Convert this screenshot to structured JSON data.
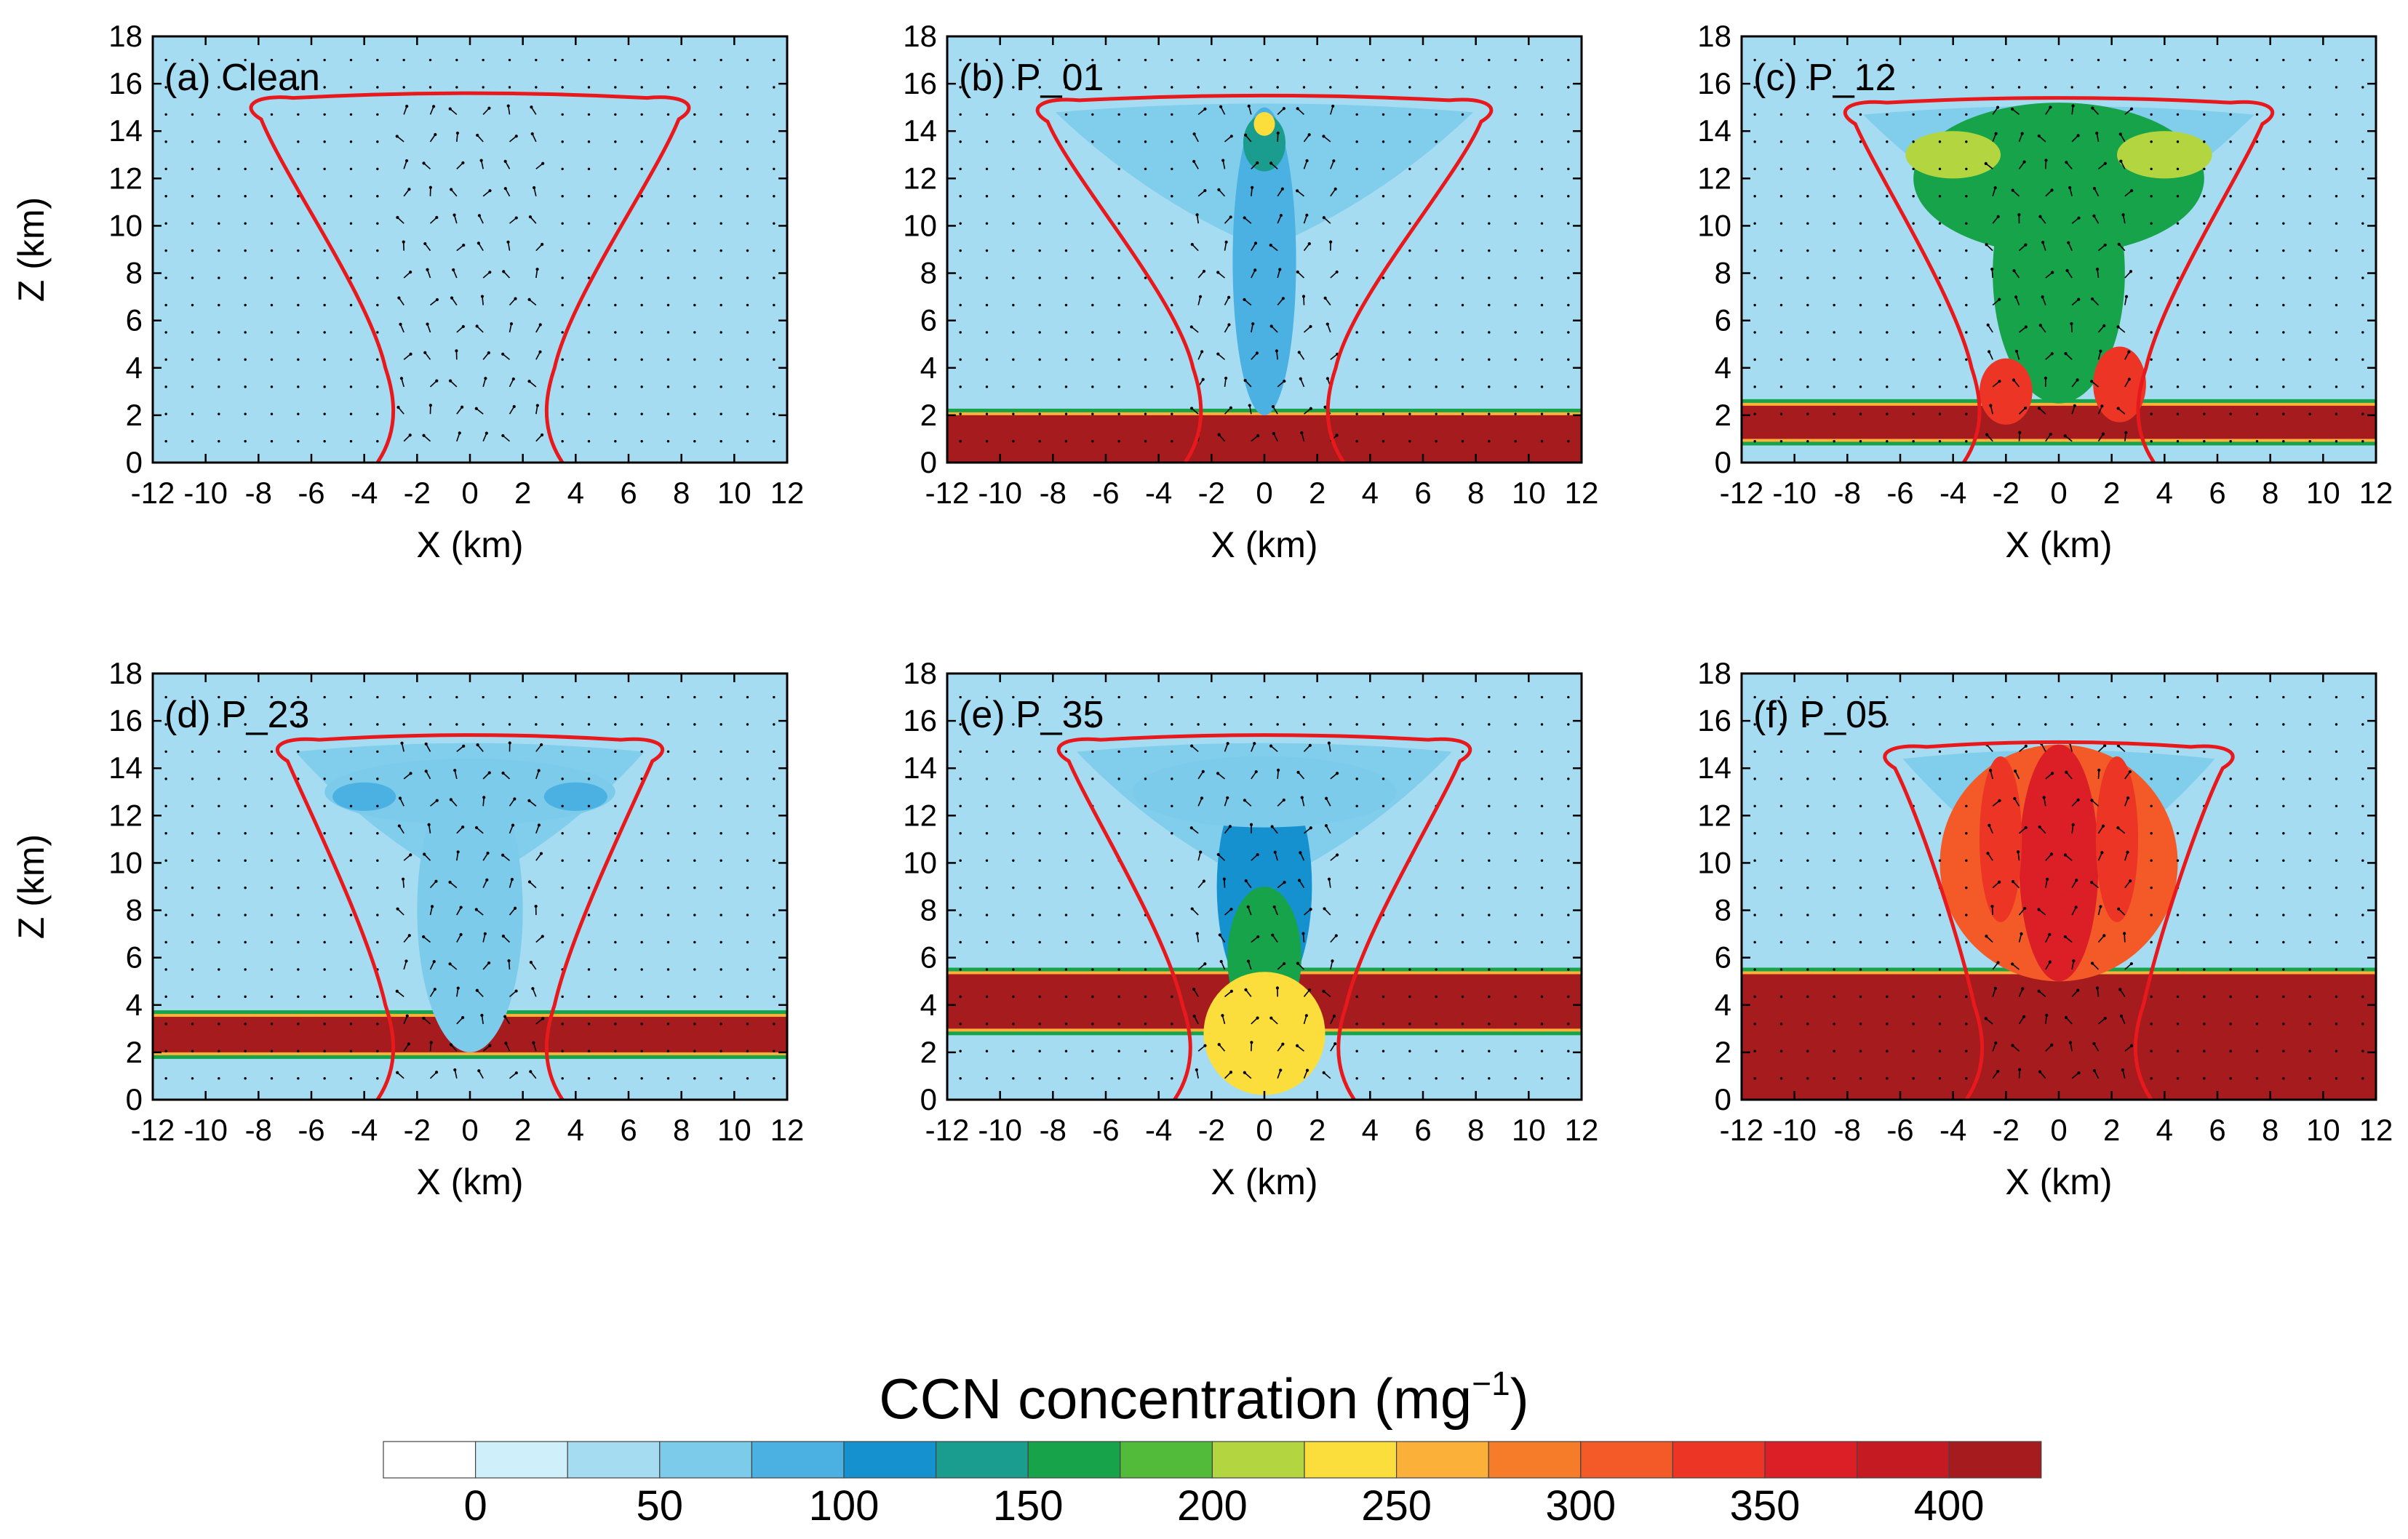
{
  "colors": {
    "background": "#a6dcf2",
    "cloud_outline": "#e8191c",
    "vectors": "#000000"
  },
  "colorbar": {
    "title_main": "CCN concentration (mg",
    "title_sup": "−1",
    "title_end": ")",
    "labels": [
      "0",
      "50",
      "100",
      "150",
      "200",
      "250",
      "300",
      "350",
      "400"
    ],
    "colors": [
      "#ffffff",
      "#cfeffb",
      "#a6dcf2",
      "#7ccbeb",
      "#4bb1e2",
      "#1591d0",
      "#1a9c8f",
      "#17a34a",
      "#52bc3a",
      "#b3d640",
      "#fbdd3b",
      "#fbb03a",
      "#f77c2a",
      "#f35a27",
      "#ec3524",
      "#dc1f26",
      "#c51a22",
      "#a51b1e"
    ]
  },
  "chart_data": [
    {
      "type": "heatmap",
      "title": "(a) Clean",
      "xlabel": "X (km)",
      "ylabel": "Z (km)",
      "xlim": [
        -12,
        12
      ],
      "ylim": [
        0,
        18
      ],
      "xticks": [
        "-12",
        "-10",
        "-8",
        "-6",
        "-4",
        "-2",
        "0",
        "2",
        "4",
        "6",
        "8",
        "10",
        "12"
      ],
      "yticks": [
        "0",
        "2",
        "4",
        "6",
        "8",
        "10",
        "12",
        "14",
        "16",
        "18"
      ],
      "cloud_top": 15.5,
      "anvil_halfwidth": 8.2,
      "base_halfwidth": 3.5,
      "aerosol_layer": null,
      "plume": [],
      "anvil_max_ccn": 0
    },
    {
      "type": "heatmap",
      "title": "(b) P_01",
      "xlabel": "X (km)",
      "ylabel": "Z (km)",
      "xlim": [
        -12,
        12
      ],
      "ylim": [
        0,
        18
      ],
      "xticks": [
        "-12",
        "-10",
        "-8",
        "-6",
        "-4",
        "-2",
        "0",
        "2",
        "4",
        "6",
        "8",
        "10",
        "12"
      ],
      "yticks": [
        "0",
        "2",
        "4",
        "6",
        "8",
        "10",
        "12",
        "14",
        "16",
        "18"
      ],
      "cloud_top": 15.4,
      "anvil_halfwidth": 8.5,
      "base_halfwidth": 3.0,
      "aerosol_layer": {
        "bottom": 0,
        "top": 2.0,
        "ccn": 400
      },
      "plume": [
        {
          "x": 0,
          "z": 8.5,
          "rx": 1.2,
          "rz": 6.5,
          "ccn": 80
        },
        {
          "x": 0,
          "z": 13.5,
          "rx": 0.8,
          "rz": 1.2,
          "ccn": 130
        },
        {
          "x": 0,
          "z": 14.3,
          "rx": 0.4,
          "rz": 0.5,
          "ccn": 230
        }
      ],
      "anvil_max_ccn": 90
    },
    {
      "type": "heatmap",
      "title": "(c) P_12",
      "xlabel": "X (km)",
      "ylabel": "Z (km)",
      "xlim": [
        -12,
        12
      ],
      "ylim": [
        0,
        18
      ],
      "xticks": [
        "-12",
        "-10",
        "-8",
        "-6",
        "-4",
        "-2",
        "0",
        "2",
        "4",
        "6",
        "8",
        "10",
        "12"
      ],
      "yticks": [
        "0",
        "2",
        "4",
        "6",
        "8",
        "10",
        "12",
        "14",
        "16",
        "18"
      ],
      "cloud_top": 15.3,
      "anvil_halfwidth": 8.0,
      "base_halfwidth": 3.6,
      "aerosol_layer": {
        "bottom": 1.0,
        "top": 2.4,
        "ccn": 400
      },
      "plume": [
        {
          "x": 0,
          "z": 12.0,
          "rx": 5.5,
          "rz": 3.2,
          "ccn": 170
        },
        {
          "x": 0,
          "z": 8.0,
          "rx": 2.5,
          "rz": 5.5,
          "ccn": 150
        },
        {
          "x": -4.0,
          "z": 13.0,
          "rx": 1.8,
          "rz": 1.0,
          "ccn": 220
        },
        {
          "x": 4.0,
          "z": 13.0,
          "rx": 1.8,
          "rz": 1.0,
          "ccn": 220
        },
        {
          "x": -2.0,
          "z": 3.0,
          "rx": 1.0,
          "rz": 1.4,
          "ccn": 330
        },
        {
          "x": 2.3,
          "z": 3.3,
          "rx": 1.0,
          "rz": 1.6,
          "ccn": 330
        }
      ],
      "anvil_max_ccn": 180
    },
    {
      "type": "heatmap",
      "title": "(d) P_23",
      "xlabel": "X (km)",
      "ylabel": "Z (km)",
      "xlim": [
        -12,
        12
      ],
      "ylim": [
        0,
        18
      ],
      "xticks": [
        "-12",
        "-10",
        "-8",
        "-6",
        "-4",
        "-2",
        "0",
        "2",
        "4",
        "6",
        "8",
        "10",
        "12"
      ],
      "yticks": [
        "0",
        "2",
        "4",
        "6",
        "8",
        "10",
        "12",
        "14",
        "16",
        "18"
      ],
      "cloud_top": 15.3,
      "anvil_halfwidth": 7.2,
      "base_halfwidth": 3.5,
      "aerosol_layer": {
        "bottom": 2.0,
        "top": 3.5,
        "ccn": 400
      },
      "plume": [
        {
          "x": 0,
          "z": 8.0,
          "rx": 2.0,
          "rz": 6.0,
          "ccn": 70
        },
        {
          "x": 0,
          "z": 13.0,
          "rx": 5.5,
          "rz": 1.4,
          "ccn": 60
        },
        {
          "x": -4.0,
          "z": 12.8,
          "rx": 1.2,
          "rz": 0.6,
          "ccn": 90
        },
        {
          "x": 4.0,
          "z": 12.8,
          "rx": 1.2,
          "rz": 0.6,
          "ccn": 90
        }
      ],
      "anvil_max_ccn": 60
    },
    {
      "type": "heatmap",
      "title": "(e) P_35",
      "xlabel": "X (km)",
      "ylabel": "Z (km)",
      "xlim": [
        -12,
        12
      ],
      "ylim": [
        0,
        18
      ],
      "xticks": [
        "-12",
        "-10",
        "-8",
        "-6",
        "-4",
        "-2",
        "0",
        "2",
        "4",
        "6",
        "8",
        "10",
        "12"
      ],
      "yticks": [
        "0",
        "2",
        "4",
        "6",
        "8",
        "10",
        "12",
        "14",
        "16",
        "18"
      ],
      "cloud_top": 15.3,
      "anvil_halfwidth": 7.7,
      "base_halfwidth": 3.4,
      "aerosol_layer": {
        "bottom": 3.0,
        "top": 5.3,
        "ccn": 400
      },
      "plume": [
        {
          "x": 0,
          "z": 9.0,
          "rx": 1.8,
          "rz": 5.0,
          "ccn": 110
        },
        {
          "x": 0,
          "z": 13.0,
          "rx": 5.0,
          "rz": 1.5,
          "ccn": 60
        },
        {
          "x": 0,
          "z": 6.0,
          "rx": 1.4,
          "rz": 3.0,
          "ccn": 160
        },
        {
          "x": 0,
          "z": 2.8,
          "rx": 2.3,
          "rz": 2.6,
          "ccn": 240
        }
      ],
      "anvil_max_ccn": 60
    },
    {
      "type": "heatmap",
      "title": "(f) P_05",
      "xlabel": "X (km)",
      "ylabel": "Z (km)",
      "xlim": [
        -12,
        12
      ],
      "ylim": [
        0,
        18
      ],
      "xticks": [
        "-12",
        "-10",
        "-8",
        "-6",
        "-4",
        "-2",
        "0",
        "2",
        "4",
        "6",
        "8",
        "10",
        "12"
      ],
      "yticks": [
        "0",
        "2",
        "4",
        "6",
        "8",
        "10",
        "12",
        "14",
        "16",
        "18"
      ],
      "cloud_top": 15.0,
      "anvil_halfwidth": 6.5,
      "base_halfwidth": 3.5,
      "aerosol_layer": {
        "bottom": 0,
        "top": 5.3,
        "ccn": 400
      },
      "plume": [
        {
          "x": 0,
          "z": 10.0,
          "rx": 4.5,
          "rz": 5.0,
          "ccn": 300
        },
        {
          "x": 0,
          "z": 10.0,
          "rx": 1.5,
          "rz": 5.0,
          "ccn": 350
        },
        {
          "x": -2.2,
          "z": 11.0,
          "rx": 0.8,
          "rz": 3.5,
          "ccn": 345
        },
        {
          "x": 2.2,
          "z": 11.0,
          "rx": 0.8,
          "rz": 3.5,
          "ccn": 345
        }
      ],
      "anvil_max_ccn": 250
    }
  ]
}
